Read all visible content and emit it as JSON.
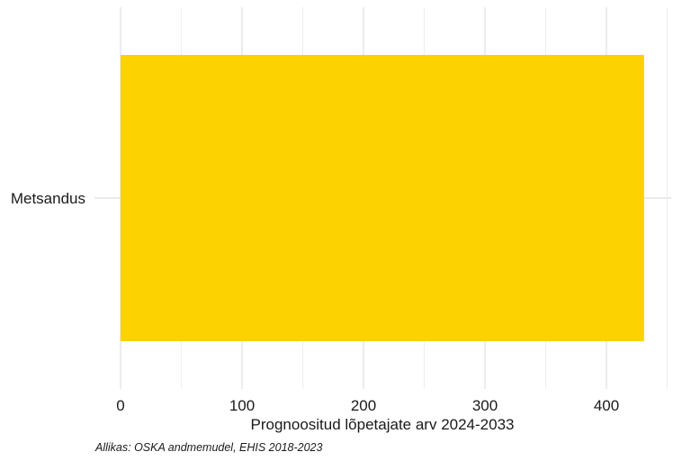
{
  "chart_data": {
    "type": "bar",
    "orientation": "horizontal",
    "categories": [
      "Metsandus"
    ],
    "values": [
      431
    ],
    "xlabel": "Prognoositud lõpetajate arv 2024-2033",
    "ylabel": "",
    "xlim": [
      0,
      450
    ],
    "x_ticks": [
      0,
      100,
      200,
      300,
      400
    ],
    "grid": true,
    "bar_color": "#FCD200",
    "caption": "Allikas: OSKA andmemudel, EHIS 2018-2023"
  }
}
